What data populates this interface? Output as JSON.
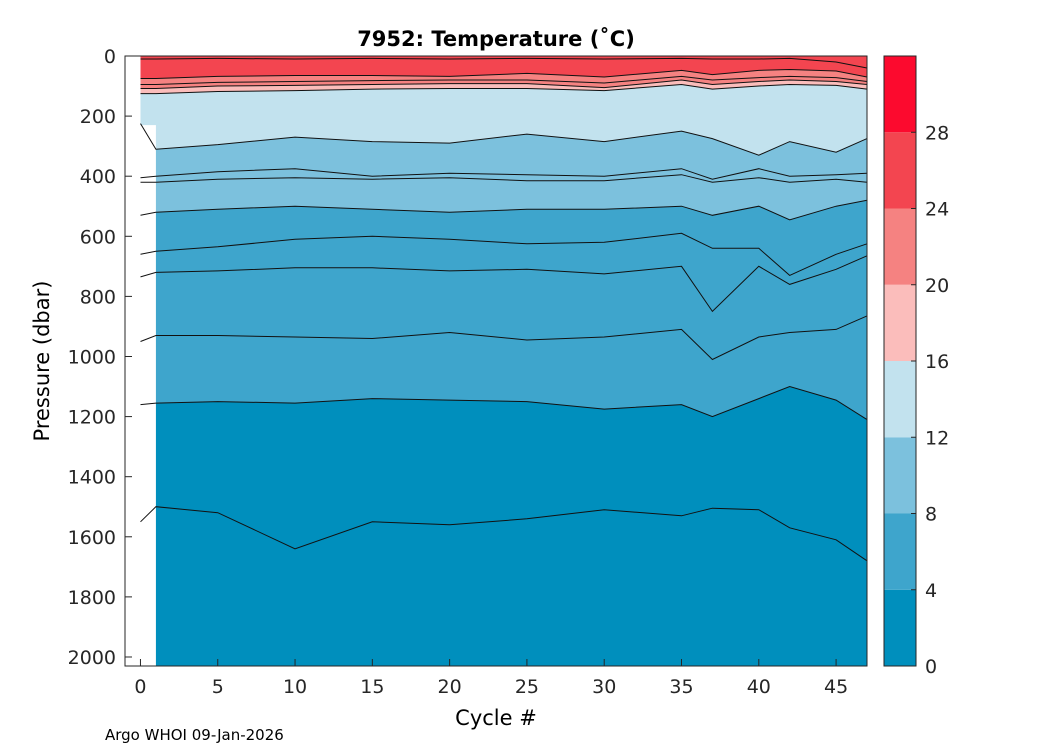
{
  "chart_data": {
    "type": "contourf",
    "title": "7952:  Temperature (˚C)",
    "xlabel": "Cycle #",
    "ylabel": "Pressure (dbar)",
    "xlim": [
      -1,
      47
    ],
    "ylim": [
      2030,
      0
    ],
    "x_ticks": [
      0,
      5,
      10,
      15,
      20,
      25,
      30,
      35,
      40,
      45
    ],
    "y_ticks": [
      0,
      200,
      400,
      600,
      800,
      1000,
      1200,
      1400,
      1600,
      1800,
      2000
    ],
    "colorbar": {
      "range": [
        0,
        32
      ],
      "ticks": [
        0,
        4,
        8,
        12,
        16,
        20,
        24,
        28
      ],
      "levels": [
        {
          "min": 0,
          "max": 4,
          "color": "#008fbd"
        },
        {
          "min": 4,
          "max": 8,
          "color": "#3ea5cc"
        },
        {
          "min": 8,
          "max": 12,
          "color": "#7cc1dd"
        },
        {
          "min": 12,
          "max": 16,
          "color": "#c2e2ee"
        },
        {
          "min": 16,
          "max": 20,
          "color": "#fbbdbb"
        },
        {
          "min": 20,
          "max": 24,
          "color": "#f58281"
        },
        {
          "min": 24,
          "max": 28,
          "color": "#f34550"
        },
        {
          "min": 28,
          "max": 32,
          "color": "#fc0a2e"
        }
      ]
    },
    "cycles": [
      0,
      1,
      5,
      10,
      15,
      20,
      25,
      30,
      35,
      37,
      40,
      42,
      45,
      47
    ],
    "isotherms": [
      {
        "temp": 26,
        "depths": [
          10,
          10,
          8,
          10,
          8,
          10,
          8,
          10,
          8,
          10,
          10,
          8,
          20,
          40
        ]
      },
      {
        "temp": 24,
        "depths": [
          75,
          75,
          68,
          65,
          65,
          68,
          58,
          70,
          48,
          62,
          48,
          45,
          50,
          70
        ]
      },
      {
        "temp": 22,
        "depths": [
          95,
          95,
          88,
          85,
          82,
          80,
          80,
          90,
          68,
          80,
          72,
          68,
          72,
          85
        ]
      },
      {
        "temp": 20,
        "depths": [
          108,
          108,
          100,
          98,
          95,
          92,
          92,
          105,
          80,
          95,
          85,
          80,
          85,
          95
        ]
      },
      {
        "temp": 16,
        "depths": [
          125,
          125,
          118,
          115,
          110,
          108,
          108,
          115,
          95,
          110,
          100,
          95,
          98,
          110
        ]
      },
      {
        "temp": 12,
        "depths": [
          225,
          310,
          295,
          270,
          285,
          290,
          260,
          285,
          250,
          275,
          330,
          285,
          320,
          275
        ]
      },
      {
        "temp": 10,
        "depths": [
          405,
          400,
          385,
          375,
          400,
          390,
          395,
          400,
          375,
          410,
          375,
          400,
          395,
          390
        ]
      },
      {
        "temp": 9,
        "depths": [
          420,
          420,
          410,
          405,
          410,
          405,
          415,
          415,
          395,
          420,
          405,
          420,
          410,
          420
        ]
      },
      {
        "temp": 8,
        "depths": [
          530,
          520,
          510,
          500,
          510,
          520,
          510,
          510,
          500,
          530,
          500,
          545,
          500,
          480
        ]
      },
      {
        "temp": 7,
        "depths": [
          660,
          650,
          635,
          610,
          600,
          610,
          625,
          620,
          590,
          640,
          640,
          730,
          660,
          625
        ]
      },
      {
        "temp": 6,
        "depths": [
          735,
          720,
          715,
          705,
          705,
          715,
          710,
          725,
          700,
          850,
          700,
          760,
          710,
          665
        ]
      },
      {
        "temp": 5,
        "depths": [
          950,
          930,
          930,
          935,
          940,
          920,
          945,
          935,
          910,
          1010,
          935,
          920,
          910,
          865
        ]
      },
      {
        "temp": 4,
        "depths": [
          1160,
          1155,
          1150,
          1155,
          1140,
          1145,
          1150,
          1175,
          1160,
          1200,
          1140,
          1100,
          1145,
          1210
        ]
      },
      {
        "temp": 3,
        "depths": [
          1550,
          1500,
          1520,
          1640,
          1550,
          1560,
          1540,
          1510,
          1530,
          1505,
          1510,
          1570,
          1610,
          1680
        ]
      }
    ]
  },
  "footer": {
    "credit": "Argo WHOI 09-Jan-2026"
  }
}
